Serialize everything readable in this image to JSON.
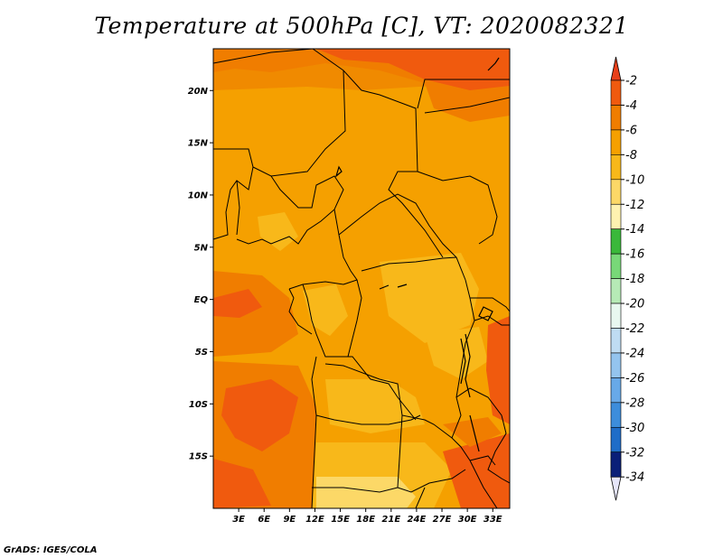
{
  "title": "Temperature at 500hPa [C], VT: 2020082321",
  "credit": "GrADS: IGES/COLA",
  "map": {
    "lon_range": [
      0,
      35
    ],
    "lat_range": [
      -20,
      24
    ],
    "lat_ticks": [
      {
        "label": "20N",
        "lat": 20
      },
      {
        "label": "15N",
        "lat": 15
      },
      {
        "label": "10N",
        "lat": 10
      },
      {
        "label": "5N",
        "lat": 5
      },
      {
        "label": "EQ",
        "lat": 0
      },
      {
        "label": "5S",
        "lat": -5
      },
      {
        "label": "10S",
        "lat": -10
      },
      {
        "label": "15S",
        "lat": -15
      }
    ],
    "lon_ticks": [
      {
        "label": "3E",
        "lon": 3
      },
      {
        "label": "6E",
        "lon": 6
      },
      {
        "label": "9E",
        "lon": 9
      },
      {
        "label": "12E",
        "lon": 12
      },
      {
        "label": "15E",
        "lon": 15
      },
      {
        "label": "18E",
        "lon": 18
      },
      {
        "label": "21E",
        "lon": 21
      },
      {
        "label": "24E",
        "lon": 24
      },
      {
        "label": "27E",
        "lon": 27
      },
      {
        "label": "30E",
        "lon": 30
      },
      {
        "label": "33E",
        "lon": 33
      }
    ]
  },
  "colorbar": {
    "labels": [
      "-2",
      "-4",
      "-6",
      "-8",
      "-10",
      "-12",
      "-14",
      "-16",
      "-18",
      "-20",
      "-22",
      "-24",
      "-26",
      "-28",
      "-30",
      "-32",
      "-34"
    ],
    "colors": [
      "#f05a0e",
      "#f07d00",
      "#f5a000",
      "#f8b81a",
      "#fcd867",
      "#fef2b0",
      "#3ab83a",
      "#78d878",
      "#b6eab6",
      "#e8f8f0",
      "#bfdcf3",
      "#94c4ee",
      "#68a9e8",
      "#3d8ddb",
      "#1f6dc8",
      "#1048a8",
      "#0a1f78"
    ],
    "top_triangle_color": "#e8401a",
    "bottom_triangle_color": "#e6e6fa"
  }
}
